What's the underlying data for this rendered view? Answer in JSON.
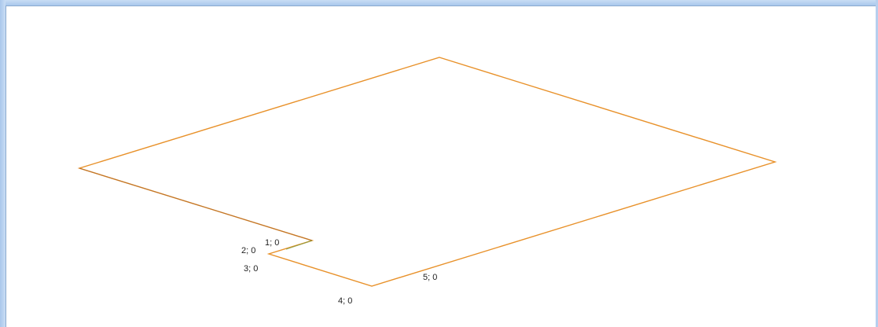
{
  "colors": {
    "outline": "#e8912a",
    "outline_dark": "#a0612a",
    "outline_green": "#7a9a3a",
    "frame": "#a9c7ec"
  },
  "vertex_labels": [
    {
      "id": "v1",
      "text": "1; 0"
    },
    {
      "id": "v2",
      "text": "2; 0"
    },
    {
      "id": "v3",
      "text": "3; 0"
    },
    {
      "id": "v4",
      "text": "4; 0"
    },
    {
      "id": "v5",
      "text": "5; 0"
    }
  ]
}
